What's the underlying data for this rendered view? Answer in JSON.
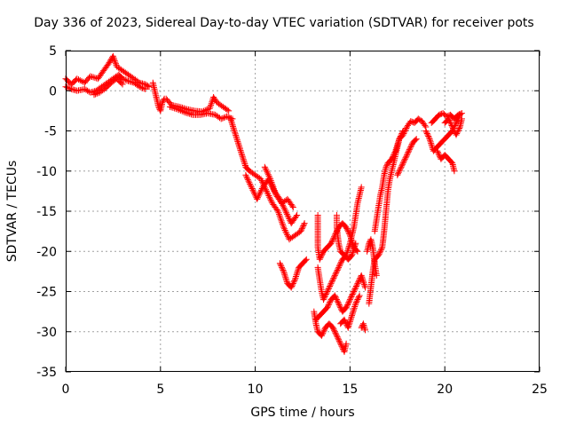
{
  "chart_data": {
    "type": "scatter",
    "title": "Day 336 of 2023, Sidereal Day-to-day VTEC variation (SDTVAR) for receiver pots",
    "xlabel": "GPS time / hours",
    "ylabel": "SDTVAR / TECUs",
    "xlim": [
      0,
      25
    ],
    "ylim": [
      -35,
      5
    ],
    "xticks": [
      0,
      5,
      10,
      15,
      20,
      25
    ],
    "yticks": [
      5,
      0,
      -5,
      -10,
      -15,
      -20,
      -25,
      -30,
      -35
    ],
    "grid": true,
    "marker": "+",
    "series": [
      {
        "name": "SDTVAR",
        "color": "#ff0000",
        "segments": [
          [
            [
              0.0,
              1.5
            ],
            [
              0.3,
              0.8
            ],
            [
              0.6,
              1.5
            ],
            [
              1.0,
              1.0
            ],
            [
              1.3,
              1.8
            ],
            [
              1.7,
              1.5
            ],
            [
              2.0,
              2.5
            ],
            [
              2.3,
              3.5
            ],
            [
              2.5,
              4.3
            ],
            [
              2.7,
              3.0
            ],
            [
              3.0,
              2.5
            ],
            [
              3.3,
              2.0
            ],
            [
              3.6,
              1.5
            ],
            [
              3.9,
              1.0
            ],
            [
              4.2,
              0.8
            ],
            [
              4.4,
              0.5
            ]
          ],
          [
            [
              0.0,
              0.5
            ],
            [
              0.3,
              0.2
            ],
            [
              0.6,
              0.0
            ],
            [
              1.0,
              0.2
            ],
            [
              1.3,
              -0.2
            ],
            [
              1.6,
              0.0
            ],
            [
              1.9,
              0.5
            ],
            [
              2.2,
              1.0
            ],
            [
              2.5,
              1.5
            ],
            [
              2.8,
              2.0
            ],
            [
              3.0,
              1.5
            ],
            [
              3.3,
              1.2
            ],
            [
              3.6,
              1.0
            ],
            [
              3.9,
              0.5
            ],
            [
              4.2,
              0.2
            ]
          ],
          [
            [
              1.5,
              -0.5
            ],
            [
              1.8,
              -0.2
            ],
            [
              2.1,
              0.3
            ],
            [
              2.4,
              1.0
            ],
            [
              2.7,
              1.5
            ],
            [
              3.0,
              0.8
            ]
          ],
          [
            [
              4.6,
              1.0
            ],
            [
              4.7,
              0.0
            ],
            [
              4.8,
              -1.0
            ],
            [
              4.9,
              -2.0
            ],
            [
              5.0,
              -2.5
            ],
            [
              5.1,
              -1.5
            ],
            [
              5.2,
              -1.0
            ]
          ],
          [
            [
              5.3,
              -1.0
            ],
            [
              5.6,
              -1.8
            ],
            [
              6.0,
              -2.0
            ],
            [
              6.4,
              -2.3
            ],
            [
              6.8,
              -2.5
            ],
            [
              7.2,
              -2.6
            ],
            [
              7.6,
              -2.2
            ],
            [
              7.8,
              -0.8
            ],
            [
              8.0,
              -1.5
            ],
            [
              8.3,
              -2.0
            ],
            [
              8.6,
              -2.5
            ]
          ],
          [
            [
              5.5,
              -2.0
            ],
            [
              5.9,
              -2.3
            ],
            [
              6.3,
              -2.7
            ],
            [
              6.7,
              -3.0
            ],
            [
              7.1,
              -3.0
            ],
            [
              7.5,
              -2.8
            ],
            [
              7.9,
              -3.0
            ],
            [
              8.2,
              -3.5
            ],
            [
              8.5,
              -3.2
            ],
            [
              8.8,
              -3.5
            ]
          ],
          [
            [
              8.7,
              -3.5
            ],
            [
              8.9,
              -5.0
            ],
            [
              9.1,
              -6.5
            ],
            [
              9.3,
              -8.0
            ],
            [
              9.5,
              -9.5
            ],
            [
              9.7,
              -10.0
            ],
            [
              10.0,
              -10.5
            ],
            [
              10.3,
              -11.0
            ],
            [
              10.6,
              -12.5
            ],
            [
              10.9,
              -14.0
            ],
            [
              11.2,
              -15.0
            ],
            [
              11.5,
              -17.0
            ],
            [
              11.8,
              -18.5
            ],
            [
              12.1,
              -18.0
            ],
            [
              12.4,
              -17.5
            ],
            [
              12.6,
              -16.5
            ]
          ],
          [
            [
              9.5,
              -10.5
            ],
            [
              9.8,
              -12.0
            ],
            [
              10.1,
              -13.5
            ],
            [
              10.4,
              -12.0
            ],
            [
              10.7,
              -11.0
            ],
            [
              11.0,
              -12.5
            ],
            [
              11.3,
              -13.5
            ],
            [
              11.6,
              -15.0
            ],
            [
              11.9,
              -16.5
            ],
            [
              12.2,
              -15.5
            ]
          ],
          [
            [
              10.5,
              -9.5
            ],
            [
              10.8,
              -11.0
            ],
            [
              11.1,
              -13.0
            ],
            [
              11.4,
              -14.0
            ],
            [
              11.7,
              -13.5
            ],
            [
              12.0,
              -14.5
            ]
          ],
          [
            [
              11.3,
              -21.5
            ],
            [
              11.5,
              -22.5
            ],
            [
              11.7,
              -24.0
            ],
            [
              11.9,
              -24.5
            ],
            [
              12.1,
              -23.5
            ],
            [
              12.3,
              -22.0
            ],
            [
              12.5,
              -21.5
            ],
            [
              12.7,
              -21.0
            ]
          ],
          [
            [
              13.3,
              -15.5
            ],
            [
              13.3,
              -17.5
            ],
            [
              13.3,
              -19.5
            ],
            [
              13.4,
              -21.0
            ],
            [
              13.6,
              -20.0
            ],
            [
              13.8,
              -19.5
            ],
            [
              14.0,
              -19.0
            ],
            [
              14.2,
              -18.0
            ],
            [
              14.4,
              -17.0
            ],
            [
              14.6,
              -16.5
            ],
            [
              14.8,
              -17.0
            ],
            [
              15.0,
              -18.0
            ],
            [
              15.2,
              -19.5
            ],
            [
              15.4,
              -20.0
            ]
          ],
          [
            [
              13.3,
              -22.0
            ],
            [
              13.4,
              -23.5
            ],
            [
              13.5,
              -25.0
            ],
            [
              13.6,
              -26.0
            ],
            [
              13.8,
              -25.0
            ],
            [
              14.0,
              -24.0
            ],
            [
              14.2,
              -23.0
            ],
            [
              14.4,
              -22.0
            ],
            [
              14.6,
              -21.0
            ],
            [
              14.8,
              -20.5
            ],
            [
              15.0,
              -19.0
            ],
            [
              15.2,
              -17.0
            ],
            [
              15.4,
              -14.0
            ],
            [
              15.5,
              -13.0
            ],
            [
              15.6,
              -12.0
            ]
          ],
          [
            [
              14.3,
              -15.5
            ],
            [
              14.3,
              -17.0
            ],
            [
              14.4,
              -19.0
            ],
            [
              14.5,
              -20.0
            ],
            [
              14.7,
              -20.5
            ],
            [
              14.9,
              -21.0
            ],
            [
              15.1,
              -20.5
            ],
            [
              15.3,
              -19.0
            ]
          ],
          [
            [
              13.1,
              -27.5
            ],
            [
              13.2,
              -29.0
            ],
            [
              13.3,
              -30.0
            ],
            [
              13.5,
              -30.5
            ],
            [
              13.7,
              -29.5
            ],
            [
              13.9,
              -29.0
            ],
            [
              14.1,
              -29.5
            ],
            [
              14.3,
              -30.5
            ],
            [
              14.5,
              -31.5
            ],
            [
              14.7,
              -32.5
            ],
            [
              14.8,
              -31.5
            ]
          ],
          [
            [
              13.2,
              -28.5
            ],
            [
              13.4,
              -28.0
            ],
            [
              13.6,
              -27.5
            ],
            [
              13.8,
              -27.0
            ],
            [
              14.0,
              -26.0
            ],
            [
              14.2,
              -25.5
            ],
            [
              14.4,
              -26.5
            ],
            [
              14.6,
              -27.5
            ],
            [
              14.8,
              -27.0
            ],
            [
              15.0,
              -26.0
            ],
            [
              15.2,
              -25.0
            ],
            [
              15.4,
              -24.0
            ],
            [
              15.6,
              -23.0
            ],
            [
              15.8,
              -24.5
            ]
          ],
          [
            [
              14.5,
              -29.0
            ],
            [
              14.7,
              -28.5
            ],
            [
              14.9,
              -29.5
            ],
            [
              15.1,
              -28.0
            ],
            [
              15.3,
              -26.5
            ],
            [
              15.5,
              -25.5
            ]
          ],
          [
            [
              15.6,
              -29.5
            ],
            [
              15.7,
              -29.0
            ],
            [
              15.8,
              -29.8
            ]
          ],
          [
            [
              16.0,
              -26.5
            ],
            [
              16.1,
              -24.5
            ],
            [
              16.2,
              -22.5
            ],
            [
              16.3,
              -21.0
            ],
            [
              16.5,
              -20.5
            ],
            [
              16.7,
              -19.5
            ],
            [
              16.8,
              -17.5
            ],
            [
              16.9,
              -15.0
            ],
            [
              17.0,
              -12.5
            ],
            [
              17.1,
              -11.0
            ],
            [
              17.2,
              -10.0
            ],
            [
              17.3,
              -9.0
            ],
            [
              17.4,
              -8.0
            ],
            [
              17.5,
              -7.0
            ],
            [
              17.6,
              -6.0
            ],
            [
              17.8,
              -5.5
            ],
            [
              18.0,
              -4.5
            ],
            [
              18.2,
              -3.8
            ],
            [
              18.4,
              -4.0
            ],
            [
              18.6,
              -3.5
            ],
            [
              18.8,
              -3.8
            ],
            [
              19.0,
              -4.5
            ]
          ],
          [
            [
              16.3,
              -17.5
            ],
            [
              16.4,
              -16.0
            ],
            [
              16.5,
              -14.5
            ],
            [
              16.6,
              -13.0
            ],
            [
              16.7,
              -12.0
            ],
            [
              16.8,
              -10.5
            ],
            [
              16.9,
              -9.5
            ],
            [
              17.0,
              -9.0
            ],
            [
              17.2,
              -8.5
            ],
            [
              17.4,
              -7.5
            ],
            [
              17.6,
              -6.0
            ],
            [
              17.8,
              -5.0
            ]
          ],
          [
            [
              15.9,
              -20.0
            ],
            [
              16.0,
              -19.0
            ],
            [
              16.1,
              -18.5
            ],
            [
              16.2,
              -19.5
            ],
            [
              16.3,
              -21.5
            ],
            [
              16.4,
              -23.0
            ]
          ],
          [
            [
              17.5,
              -10.5
            ],
            [
              17.7,
              -9.5
            ],
            [
              17.9,
              -8.5
            ],
            [
              18.1,
              -7.5
            ],
            [
              18.3,
              -6.5
            ],
            [
              18.5,
              -6.0
            ]
          ],
          [
            [
              19.0,
              -5.0
            ],
            [
              19.2,
              -6.0
            ],
            [
              19.4,
              -7.5
            ],
            [
              19.6,
              -7.0
            ],
            [
              19.8,
              -6.5
            ],
            [
              20.0,
              -6.0
            ],
            [
              20.2,
              -5.5
            ],
            [
              20.4,
              -5.0
            ],
            [
              20.6,
              -4.0
            ],
            [
              20.8,
              -3.0
            ]
          ],
          [
            [
              19.6,
              -7.5
            ],
            [
              19.8,
              -8.5
            ],
            [
              20.0,
              -8.0
            ],
            [
              20.2,
              -8.5
            ],
            [
              20.4,
              -9.0
            ],
            [
              20.5,
              -10.0
            ]
          ],
          [
            [
              19.3,
              -4.0
            ],
            [
              19.5,
              -3.5
            ],
            [
              19.7,
              -3.0
            ],
            [
              19.9,
              -2.8
            ],
            [
              20.1,
              -3.2
            ],
            [
              20.3,
              -3.0
            ],
            [
              20.5,
              -3.5
            ],
            [
              20.7,
              -3.0
            ],
            [
              20.9,
              -2.8
            ]
          ],
          [
            [
              20.0,
              -4.0
            ],
            [
              20.2,
              -3.5
            ],
            [
              20.4,
              -4.5
            ],
            [
              20.6,
              -5.5
            ],
            [
              20.8,
              -4.5
            ],
            [
              20.9,
              -3.5
            ]
          ]
        ]
      }
    ]
  }
}
